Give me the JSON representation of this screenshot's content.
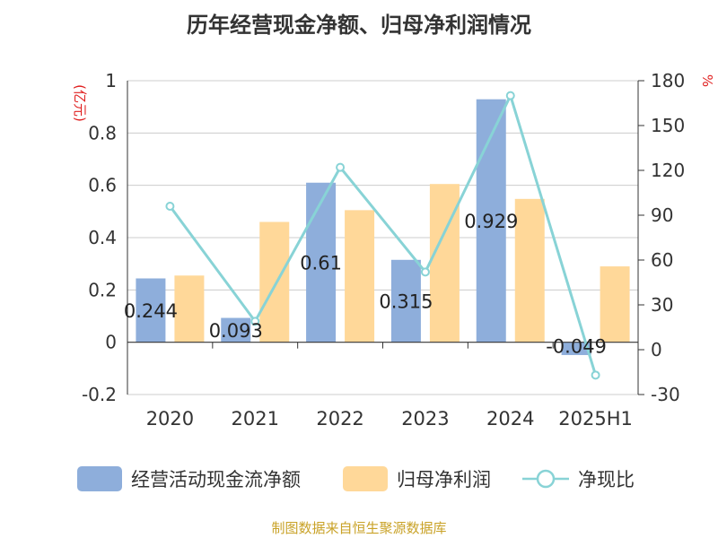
{
  "title": "历年经营现金净额、归母净利润情况",
  "source": "制图数据来自恒生聚源数据库",
  "colors": {
    "cash_flow": "#8EAEDB",
    "net_profit": "#FFD899",
    "ratio": "#88D3D6",
    "axis_label": "#e02020",
    "grid": "#cccccc",
    "text": "#333333"
  },
  "chart_data": {
    "type": "bar",
    "title": "历年经营现金净额、归母净利润情况",
    "categories": [
      "2020",
      "2021",
      "2022",
      "2023",
      "2024",
      "2025H1"
    ],
    "y_left": {
      "label": "(亿元)",
      "min": -0.2,
      "max": 1,
      "ticks": [
        -0.2,
        0,
        0.2,
        0.4,
        0.6,
        0.8,
        1
      ],
      "tick_labels": [
        "-0.2",
        "0",
        "0.2",
        "0.4",
        "0.6",
        "0.8",
        "1"
      ]
    },
    "y_right": {
      "label": "%",
      "min": -30,
      "max": 180,
      "ticks": [
        -30,
        0,
        30,
        60,
        90,
        120,
        150,
        180
      ],
      "tick_labels": [
        "-30",
        "0",
        "30",
        "60",
        "90",
        "120",
        "150",
        "180"
      ]
    },
    "grid": true,
    "legend_position": "bottom",
    "series": [
      {
        "name": "经营活动现金流净额",
        "kind": "bar",
        "axis": "left",
        "values": [
          0.244,
          0.093,
          0.61,
          0.315,
          0.929,
          -0.049
        ],
        "labels": [
          "0.244",
          "0.093",
          "0.61",
          "0.315",
          "0.929",
          "-0.049"
        ]
      },
      {
        "name": "归母净利润",
        "kind": "bar",
        "axis": "left",
        "values": [
          0.255,
          0.46,
          0.505,
          0.605,
          0.548,
          0.29
        ]
      },
      {
        "name": "净现比",
        "kind": "line",
        "axis": "right",
        "values": [
          96,
          19,
          122,
          52,
          170,
          -17
        ]
      }
    ]
  }
}
